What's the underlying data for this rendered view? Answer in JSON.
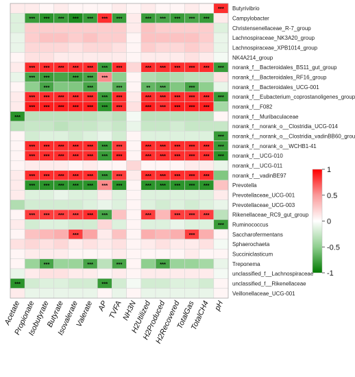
{
  "chart_data": {
    "type": "heatmap",
    "columns": [
      "Acetate",
      "Propionate",
      "Isobutyrate",
      "Butyrate",
      "Isovalerate",
      "Valerate",
      "AP",
      "TVFA",
      "NH3N",
      "H2Utilized",
      "H2Produced",
      "H2Recovered",
      "TotalGas",
      "TotalCH4",
      "pH"
    ],
    "rows": [
      {
        "label": "Butyrivibrio",
        "values": [
          0.1,
          0.1,
          0.05,
          0.1,
          0.05,
          0.05,
          0.05,
          0.1,
          0.05,
          0.1,
          0.05,
          0.05,
          0.1,
          0.05,
          0.85
        ],
        "sig": [
          "",
          "",
          "",
          "",
          "",
          "",
          "",
          "",
          "",
          "",
          "",
          "",
          "",
          "",
          "***"
        ]
      },
      {
        "label": "Campylobacter",
        "values": [
          -0.15,
          -0.8,
          -0.85,
          -0.8,
          -0.9,
          -0.8,
          0.85,
          -0.8,
          0.1,
          -0.8,
          -0.75,
          -0.8,
          -0.75,
          -0.8,
          0.1
        ],
        "sig": [
          "",
          "***",
          "***",
          "***",
          "***",
          "***",
          "***",
          "***",
          "",
          "***",
          "***",
          "***",
          "***",
          "***",
          ""
        ]
      },
      {
        "label": "Christensenellaceae_R-7_group",
        "values": [
          -0.15,
          0.25,
          0.25,
          0.25,
          0.25,
          0.25,
          0.25,
          0.25,
          0.1,
          0.3,
          0.25,
          0.25,
          0.25,
          0.25,
          -0.15
        ],
        "sig": [
          "",
          "",
          "",
          "",
          "",
          "",
          "",
          "",
          "",
          "",
          "",
          "",
          "",
          "",
          ""
        ]
      },
      {
        "label": "Lachnospiraceae_NK3A20_group",
        "values": [
          -0.1,
          0.25,
          0.3,
          0.3,
          0.25,
          0.3,
          0.25,
          0.25,
          0.05,
          0.3,
          0.3,
          0.3,
          0.3,
          0.25,
          -0.1
        ],
        "sig": [
          "",
          "",
          "",
          "",
          "",
          "",
          "",
          "",
          "",
          "",
          "",
          "",
          "",
          "",
          ""
        ]
      },
      {
        "label": "Lachnospiraceae_XPB1014_group",
        "values": [
          -0.1,
          0.2,
          0.2,
          0.2,
          0.15,
          0.2,
          0.2,
          0.15,
          0.05,
          0.25,
          0.2,
          0.2,
          0.25,
          0.2,
          -0.1
        ],
        "sig": [
          "",
          "",
          "",
          "",
          "",
          "",
          "",
          "",
          "",
          "",
          "",
          "",
          "",
          "",
          ""
        ]
      },
      {
        "label": "NK4A214_group",
        "values": [
          0.05,
          0.15,
          0.15,
          0.1,
          0.1,
          0.1,
          0.1,
          0.1,
          0.05,
          0.1,
          0.1,
          0.1,
          0.15,
          0.1,
          -0.05
        ],
        "sig": [
          "",
          "",
          "",
          "",
          "",
          "",
          "",
          "",
          "",
          "",
          "",
          "",
          "",
          "",
          ""
        ]
      },
      {
        "label": "norank_f__Bacteroidales_BS11_gut_group",
        "values": [
          0.1,
          0.85,
          0.85,
          0.85,
          0.85,
          0.85,
          -0.8,
          0.85,
          0.2,
          0.85,
          0.85,
          0.85,
          0.85,
          0.85,
          -0.8
        ],
        "sig": [
          "",
          "***",
          "***",
          "***",
          "***",
          "***",
          "***",
          "***",
          "",
          "***",
          "***",
          "***",
          "***",
          "***",
          "***"
        ]
      },
      {
        "label": "norank_f__Bacteroidales_RF16_group",
        "values": [
          -0.1,
          -0.75,
          -0.8,
          -0.75,
          -0.8,
          -0.75,
          0.55,
          -0.5,
          0.05,
          -0.35,
          -0.4,
          -0.35,
          -0.3,
          -0.3,
          0.15
        ],
        "sig": [
          "",
          "***",
          "***",
          "",
          "***",
          "***",
          "***",
          "",
          "",
          "",
          "",
          "",
          "",
          "",
          ""
        ]
      },
      {
        "label": "norank_f__Bacteroidales_UCG-001",
        "values": [
          0.05,
          -0.5,
          -0.75,
          -0.55,
          -0.55,
          -0.75,
          -0.4,
          -0.7,
          0.05,
          -0.65,
          -0.7,
          -0.55,
          -0.75,
          -0.5,
          -0.1
        ],
        "sig": [
          "",
          "",
          "***",
          "",
          "",
          "***",
          "",
          "***",
          "",
          "**",
          "***",
          "",
          "***",
          "",
          ""
        ]
      },
      {
        "label": "norank_f__Eubacterium_coprostanoligenes_group",
        "values": [
          0.1,
          0.85,
          0.85,
          0.85,
          0.85,
          0.85,
          -0.8,
          0.85,
          0.1,
          0.85,
          0.85,
          0.85,
          0.85,
          0.85,
          -0.8
        ],
        "sig": [
          "",
          "***",
          "***",
          "***",
          "***",
          "***",
          "***",
          "***",
          "",
          "***",
          "***",
          "***",
          "***",
          "***",
          "***"
        ]
      },
      {
        "label": "norank_f__F082",
        "values": [
          0.1,
          0.9,
          0.9,
          0.9,
          0.9,
          0.9,
          -0.85,
          0.85,
          0.15,
          0.9,
          0.85,
          0.9,
          0.9,
          0.9,
          -0.4
        ],
        "sig": [
          "",
          "***",
          "***",
          "***",
          "***",
          "***",
          "***",
          "***",
          "",
          "***",
          "***",
          "***",
          "***",
          "***",
          ""
        ]
      },
      {
        "label": "norank_f__Muribaculaceae",
        "values": [
          -0.85,
          -0.3,
          -0.3,
          -0.3,
          -0.3,
          -0.3,
          -0.25,
          -0.3,
          -0.05,
          -0.3,
          -0.3,
          -0.3,
          -0.3,
          -0.3,
          0.05
        ],
        "sig": [
          "***",
          "",
          "",
          "",
          "",
          "",
          "",
          "",
          "",
          "",
          "",
          "",
          "",
          "",
          ""
        ]
      },
      {
        "label": "norank_f__norank_o__Clostridia_UCG-014",
        "values": [
          -0.3,
          -0.25,
          -0.25,
          -0.3,
          -0.25,
          -0.25,
          -0.2,
          -0.25,
          -0.1,
          -0.25,
          -0.25,
          -0.2,
          -0.25,
          -0.25,
          -0.25
        ],
        "sig": [
          "",
          "",
          "",
          "",
          "",
          "",
          "",
          "",
          "",
          "",
          "",
          "",
          "",
          "",
          ""
        ]
      },
      {
        "label": "norank_f__norank_o__Clostridia_vadinBB60_group",
        "values": [
          0.05,
          -0.2,
          -0.15,
          -0.15,
          -0.2,
          -0.15,
          -0.1,
          -0.2,
          0.05,
          -0.15,
          -0.15,
          -0.15,
          -0.15,
          -0.15,
          -0.8
        ],
        "sig": [
          "",
          "",
          "",
          "",
          "",
          "",
          "",
          "",
          "",
          "",
          "",
          "",
          "",
          "",
          "***"
        ]
      },
      {
        "label": "norank_f__norank_o__WCHB1-41",
        "values": [
          0.05,
          0.85,
          0.85,
          0.85,
          0.85,
          0.85,
          -0.8,
          0.8,
          0.05,
          0.85,
          0.85,
          0.85,
          0.85,
          0.85,
          -0.8
        ],
        "sig": [
          "",
          "***",
          "***",
          "***",
          "***",
          "***",
          "***",
          "***",
          "",
          "***",
          "***",
          "***",
          "***",
          "***",
          "***"
        ]
      },
      {
        "label": "norank_f__UCG-010",
        "values": [
          0.05,
          0.85,
          0.85,
          0.85,
          0.85,
          0.85,
          -0.8,
          0.85,
          0.05,
          0.85,
          0.85,
          0.85,
          0.85,
          0.85,
          -0.85
        ],
        "sig": [
          "",
          "***",
          "***",
          "***",
          "***",
          "***",
          "***",
          "***",
          "",
          "***",
          "***",
          "***",
          "***",
          "***",
          "***"
        ]
      },
      {
        "label": "norank_f__UCG-011",
        "values": [
          0.05,
          0.1,
          0.1,
          0.1,
          0.05,
          0.1,
          0.05,
          0.05,
          0.2,
          0.05,
          0.05,
          0.05,
          0.1,
          0.1,
          -0.1
        ],
        "sig": [
          "",
          "",
          "",
          "",
          "",
          "",
          "",
          "",
          "",
          "",
          "",
          "",
          "",
          "",
          ""
        ]
      },
      {
        "label": "norank_f__vadinBE97",
        "values": [
          0.1,
          0.85,
          0.85,
          0.85,
          0.85,
          0.85,
          -0.8,
          0.8,
          0.1,
          0.85,
          0.85,
          0.85,
          0.85,
          0.85,
          -0.55
        ],
        "sig": [
          "",
          "***",
          "***",
          "***",
          "***",
          "***",
          "***",
          "***",
          "",
          "***",
          "***",
          "***",
          "***",
          "***",
          ""
        ]
      },
      {
        "label": "Prevotella",
        "values": [
          0.1,
          -0.85,
          -0.85,
          -0.85,
          -0.85,
          -0.85,
          0.55,
          -0.85,
          0.05,
          -0.85,
          -0.85,
          -0.85,
          -0.85,
          -0.85,
          0.3
        ],
        "sig": [
          "",
          "***",
          "***",
          "***",
          "***",
          "***",
          "***",
          "***",
          "",
          "***",
          "***",
          "***",
          "***",
          "***",
          ""
        ]
      },
      {
        "label": "Prevotellaceae_UCG-001",
        "values": [
          0.1,
          -0.15,
          -0.15,
          -0.1,
          -0.15,
          -0.15,
          0.1,
          -0.15,
          0.05,
          -0.15,
          -0.15,
          -0.15,
          -0.15,
          -0.15,
          0.1
        ],
        "sig": [
          "",
          "",
          "",
          "",
          "",
          "",
          "",
          "",
          "",
          "",
          "",
          "",
          "",
          "",
          ""
        ]
      },
      {
        "label": "Prevotellaceae_UCG-003",
        "values": [
          -0.35,
          -0.2,
          -0.2,
          -0.2,
          -0.2,
          -0.15,
          -0.1,
          -0.15,
          0.05,
          -0.15,
          -0.2,
          -0.15,
          -0.2,
          -0.15,
          -0.1
        ],
        "sig": [
          "",
          "",
          "",
          "",
          "",
          "",
          "",
          "",
          "",
          "",
          "",
          "",
          "",
          "",
          ""
        ]
      },
      {
        "label": "Rikenellaceae_RC9_gut_group",
        "values": [
          0.05,
          0.8,
          0.8,
          0.8,
          0.8,
          0.85,
          -0.75,
          0.3,
          0.05,
          0.8,
          0.35,
          0.8,
          0.8,
          0.8,
          -0.3
        ],
        "sig": [
          "",
          "***",
          "***",
          "***",
          "***",
          "***",
          "***",
          "",
          "",
          "***",
          "",
          "***",
          "***",
          "***",
          ""
        ]
      },
      {
        "label": "Ruminococcus",
        "values": [
          0.1,
          -0.2,
          -0.15,
          -0.15,
          -0.2,
          -0.2,
          0.2,
          -0.15,
          0.05,
          -0.15,
          -0.15,
          -0.1,
          -0.15,
          -0.15,
          -0.8
        ],
        "sig": [
          "",
          "",
          "",
          "",
          "",
          "",
          "",
          "",
          "",
          "",
          "",
          "",
          "",
          "",
          "***"
        ]
      },
      {
        "label": "Saccharofermentans",
        "values": [
          0.05,
          0.3,
          0.35,
          0.4,
          0.8,
          0.45,
          0.1,
          0.3,
          0.05,
          0.4,
          0.35,
          0.4,
          0.8,
          0.4,
          0.05
        ],
        "sig": [
          "",
          "",
          "",
          "",
          "***",
          "",
          "",
          "",
          "",
          "",
          "",
          "",
          "***",
          "",
          ""
        ]
      },
      {
        "label": "Sphaerochaeta",
        "values": [
          0.15,
          0.2,
          0.15,
          0.2,
          0.1,
          0.15,
          0.1,
          0.15,
          0.05,
          0.1,
          0.15,
          0.1,
          0.1,
          0.15,
          -0.05
        ],
        "sig": [
          "",
          "",
          "",
          "",
          "",
          "",
          "",
          "",
          "",
          "",
          "",
          "",
          "",
          "",
          ""
        ]
      },
      {
        "label": "Succiniclasticum",
        "values": [
          0.05,
          0.1,
          0.1,
          0.1,
          0.05,
          0.05,
          0.05,
          0.1,
          0.05,
          0.05,
          0.05,
          0.05,
          0.1,
          0.05,
          0.05
        ],
        "sig": [
          "",
          "",
          "",
          "",
          "",
          "",
          "",
          "",
          "",
          "",
          "",
          "",
          "",
          "",
          ""
        ]
      },
      {
        "label": "Treponema",
        "values": [
          0.05,
          -0.45,
          -0.75,
          -0.45,
          -0.45,
          -0.75,
          -0.3,
          -0.75,
          0.05,
          -0.5,
          -0.75,
          -0.45,
          -0.45,
          -0.4,
          -0.1
        ],
        "sig": [
          "",
          "",
          "***",
          "",
          "",
          "***",
          "",
          "***",
          "",
          "",
          "***",
          "",
          "",
          "",
          ""
        ]
      },
      {
        "label": "unclassified_f__Lachnospiraceae",
        "values": [
          -0.1,
          0.1,
          0.15,
          0.15,
          0.1,
          0.1,
          0.05,
          0.1,
          0.05,
          0.1,
          0.1,
          0.1,
          0.1,
          0.1,
          -0.05
        ],
        "sig": [
          "",
          "",
          "",
          "",
          "",
          "",
          "",
          "",
          "",
          "",
          "",
          "",
          "",
          "",
          ""
        ]
      },
      {
        "label": "unclassified_f__Rikenellaceae",
        "values": [
          -0.85,
          -0.2,
          -0.15,
          -0.15,
          -0.2,
          -0.2,
          -0.8,
          -0.2,
          -0.05,
          -0.2,
          -0.2,
          -0.15,
          -0.15,
          -0.2,
          0.05
        ],
        "sig": [
          "***",
          "",
          "",
          "",
          "",
          "",
          "***",
          "",
          "",
          "",
          "",
          "",
          "",
          "",
          ""
        ]
      },
      {
        "label": "Veillonellaceae_UCG-001",
        "values": [
          0.1,
          -0.1,
          -0.1,
          -0.1,
          -0.1,
          -0.1,
          0.05,
          -0.1,
          0.05,
          -0.1,
          -0.1,
          -0.1,
          -0.1,
          -0.1,
          0.05
        ],
        "sig": [
          "",
          "",
          "",
          "",
          "",
          "",
          "",
          "",
          "",
          "",
          "",
          "",
          "",
          "",
          ""
        ]
      }
    ],
    "colorbar": {
      "ticks": [
        "1",
        "0.5",
        "0",
        "-0.5",
        "-1"
      ],
      "range": [
        -1,
        1
      ]
    }
  }
}
